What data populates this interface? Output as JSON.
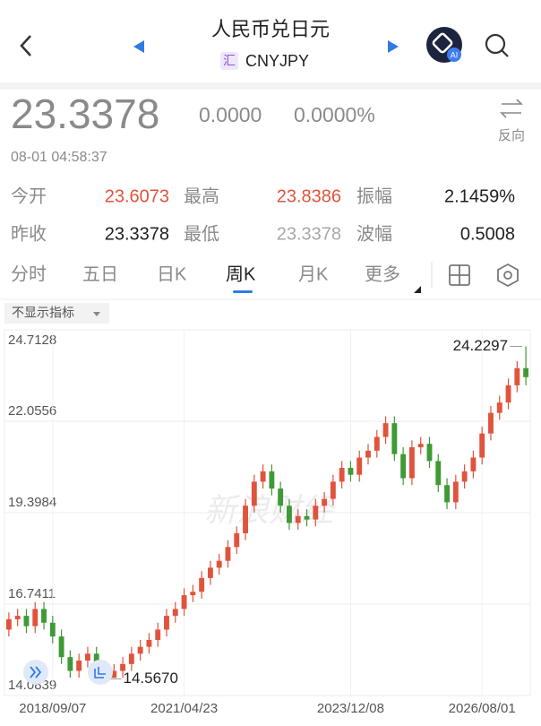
{
  "header": {
    "title": "人民币兑日元",
    "badge": "汇",
    "symbol": "CNYJPY",
    "ai": "AI"
  },
  "quote": {
    "price": "23.3378",
    "change": "0.0000",
    "change_pct": "0.0000%",
    "reverse": "反向",
    "time": "08-01 04:58:37"
  },
  "stats": [
    [
      "今开",
      "23.6073",
      "最高",
      "23.8386",
      "振幅",
      "2.1459%"
    ],
    [
      "昨收",
      "23.3378",
      "最低",
      "23.3378",
      "波幅",
      "0.5008"
    ]
  ],
  "tabs": [
    "分时",
    "五日",
    "日K",
    "周K",
    "月K",
    "更多"
  ],
  "indicator": "不显示指标",
  "watermark": "新浪财经",
  "chart_data": {
    "type": "candlestick",
    "up_color": "#e0533c",
    "down_color": "#3f9a35",
    "ylim": [
      14.0839,
      24.7128
    ],
    "yticks": [
      14.0839,
      16.7411,
      19.3984,
      22.0556,
      24.7128
    ],
    "grid": true,
    "categories": [
      null,
      null,
      null,
      null,
      null,
      "2018/09/07",
      null,
      null,
      null,
      null,
      null,
      null,
      null,
      null,
      null,
      null,
      null,
      null,
      null,
      null,
      "2021/04/23",
      null,
      null,
      null,
      null,
      null,
      null,
      null,
      null,
      null,
      null,
      null,
      null,
      null,
      null,
      null,
      null,
      null,
      null,
      "2023/12/08",
      null,
      null,
      null,
      null,
      null,
      null,
      null,
      null,
      null,
      null,
      null,
      null,
      null,
      null,
      "2026/08/01",
      null,
      null,
      null,
      null,
      null
    ],
    "open": [
      16.0,
      16.3,
      16.4,
      16.1,
      16.6,
      16.2,
      15.8,
      15.2,
      14.8,
      15.1,
      15.3,
      14.9,
      14.6,
      14.8,
      15.0,
      15.3,
      15.5,
      15.7,
      16.0,
      16.4,
      16.6,
      17.0,
      17.1,
      17.5,
      17.8,
      18.0,
      18.4,
      18.8,
      19.6,
      20.3,
      20.6,
      20.1,
      19.6,
      19.1,
      19.3,
      19.2,
      19.6,
      19.8,
      20.3,
      20.7,
      20.5,
      21.0,
      21.2,
      21.6,
      22.0,
      21.1,
      20.4,
      21.3,
      21.4,
      20.9,
      20.2,
      19.7,
      20.3,
      20.6,
      21.0,
      21.7,
      22.3,
      22.6,
      23.1,
      23.6
    ],
    "high": [
      16.5,
      16.6,
      16.6,
      16.8,
      16.8,
      16.4,
      16.0,
      15.4,
      15.3,
      15.5,
      15.5,
      15.1,
      15.0,
      15.2,
      15.5,
      15.7,
      15.9,
      16.2,
      16.6,
      16.8,
      17.2,
      17.3,
      17.7,
      18.0,
      18.2,
      18.6,
      19.0,
      19.8,
      20.5,
      20.8,
      20.8,
      20.3,
      19.8,
      19.5,
      19.5,
      19.8,
      20.0,
      20.5,
      20.9,
      20.9,
      21.2,
      21.4,
      21.8,
      22.2,
      22.2,
      21.3,
      21.5,
      21.6,
      21.6,
      21.1,
      20.4,
      20.5,
      20.8,
      21.2,
      21.9,
      22.5,
      22.8,
      23.3,
      23.8,
      24.2297
    ],
    "low": [
      15.8,
      16.1,
      15.9,
      15.9,
      16.0,
      15.6,
      15.0,
      14.6,
      14.6,
      14.9,
      14.7,
      14.567,
      14.6,
      14.6,
      14.8,
      15.1,
      15.3,
      15.5,
      15.8,
      16.2,
      16.4,
      16.8,
      16.9,
      17.3,
      17.6,
      17.8,
      18.2,
      18.6,
      19.4,
      20.1,
      19.9,
      19.4,
      18.9,
      18.9,
      19.0,
      19.0,
      19.4,
      19.6,
      20.1,
      20.3,
      20.3,
      20.8,
      21.0,
      21.4,
      20.9,
      20.2,
      20.2,
      21.1,
      20.7,
      20.0,
      19.5,
      19.5,
      20.1,
      20.4,
      20.8,
      21.5,
      22.1,
      22.4,
      22.9,
      23.1
    ],
    "close": [
      16.3,
      16.4,
      16.1,
      16.6,
      16.2,
      15.8,
      15.2,
      14.8,
      15.1,
      15.3,
      14.9,
      14.6,
      14.8,
      15.0,
      15.3,
      15.5,
      15.7,
      16.0,
      16.4,
      16.6,
      17.0,
      17.1,
      17.5,
      17.8,
      18.0,
      18.4,
      18.8,
      19.6,
      20.3,
      20.6,
      20.1,
      19.6,
      19.1,
      19.3,
      19.2,
      19.6,
      19.8,
      20.3,
      20.7,
      20.5,
      21.0,
      21.2,
      21.6,
      22.0,
      21.1,
      20.4,
      21.3,
      21.4,
      20.9,
      20.2,
      19.7,
      20.3,
      20.6,
      21.0,
      21.7,
      22.3,
      22.6,
      23.1,
      23.6,
      23.3378
    ],
    "max_label": "24.2297",
    "min_label": "14.5670"
  }
}
